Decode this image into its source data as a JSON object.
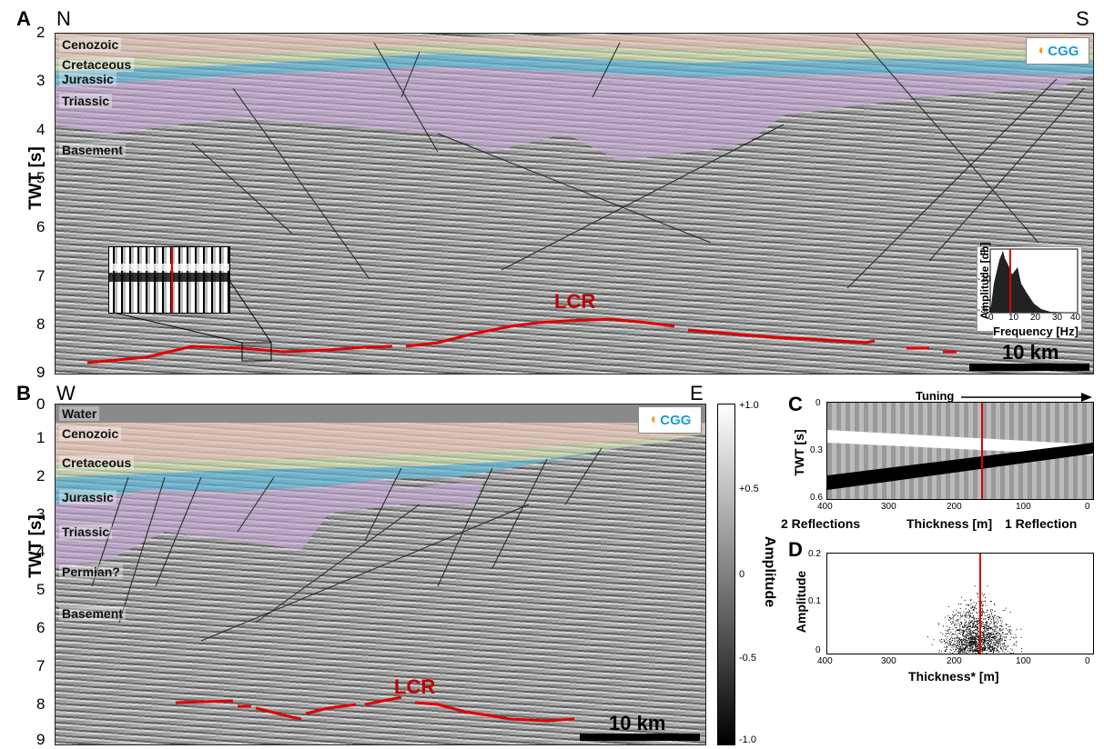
{
  "panel_a": {
    "letter": "A",
    "left_dir": "N",
    "right_dir": "S",
    "ylabel": "TWT [s]",
    "yticks": [
      "2",
      "3",
      "4",
      "5",
      "6",
      "7",
      "8",
      "9"
    ],
    "formations": [
      "Cenozoic",
      "Cretaceous",
      "Jurassic",
      "Triassic",
      "Basement"
    ],
    "lcr_label": "LCR",
    "logo": "CGG",
    "scale_label": "10 km",
    "inset_spectrum": {
      "ylabel": "Amplitude [db]",
      "xlabel": "Frequency [Hz]",
      "yticks": [
        "0",
        "-20",
        "-30"
      ],
      "xticks": [
        "0",
        "10",
        "20",
        "30",
        "40"
      ]
    }
  },
  "panel_b": {
    "letter": "B",
    "left_dir": "W",
    "right_dir": "E",
    "ylabel": "TWT [s]",
    "yticks": [
      "0",
      "1",
      "2",
      "3",
      "4",
      "5",
      "6",
      "7",
      "8",
      "9"
    ],
    "formations": [
      "Water",
      "Cenozoic",
      "Cretaceous",
      "Jurassic",
      "Triassic",
      "Permian?",
      "Basement"
    ],
    "lcr_label": "LCR",
    "logo": "CGG",
    "scale_label": "10 km"
  },
  "colorbar": {
    "label": "Amplitude",
    "ticks": [
      "+1.0",
      "+0.5",
      "0",
      "-0.5",
      "-1.0"
    ]
  },
  "panel_c": {
    "letter": "C",
    "tuning_label": "Tuning",
    "ylabel": "TWT [s]",
    "yticks": [
      "0",
      "0.3",
      "0.6"
    ],
    "xticks": [
      "400",
      "300",
      "200",
      "100",
      "0"
    ],
    "left_caption": "2 Reflections",
    "xlabel": "Thickness [m]",
    "right_caption": "1 Reflection"
  },
  "panel_d": {
    "letter": "D",
    "ylabel": "Amplitude",
    "yticks": [
      "0.2",
      "0.1",
      "0"
    ],
    "xticks": [
      "400",
      "300",
      "200",
      "100",
      "0"
    ],
    "xlabel": "Thickness* [m]"
  },
  "colors": {
    "cenozoic": "#e8c8b8",
    "cretaceous": "#d6e8b0",
    "jurassic": "#5fb8d8",
    "triassic": "#c8a8d8",
    "lcr": "#e00000"
  }
}
